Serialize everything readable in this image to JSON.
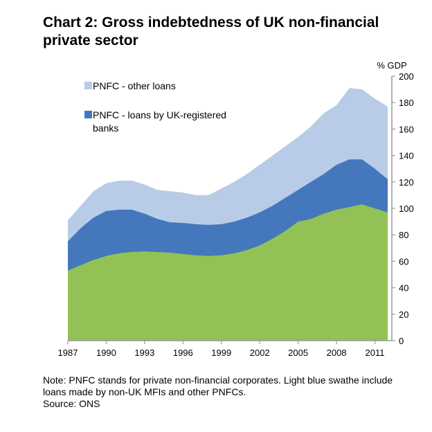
{
  "chart_data": {
    "type": "area",
    "stacked": true,
    "title": "Chart 2: Gross indebtedness of UK non-financial private sector",
    "y_axis": {
      "label": "% GDP",
      "position": "right",
      "range": [
        0,
        200
      ],
      "ticks": [
        0,
        20,
        40,
        60,
        80,
        100,
        120,
        140,
        160,
        180,
        200
      ]
    },
    "x_axis": {
      "range": [
        1987,
        2012
      ],
      "ticks": [
        "1987",
        "1990",
        "1993",
        "1996",
        "1999",
        "2002",
        "2005",
        "2008",
        "2011"
      ]
    },
    "x": [
      1987,
      1988,
      1989,
      1990,
      1991,
      1992,
      1993,
      1994,
      1995,
      1996,
      1997,
      1998,
      1999,
      2000,
      2001,
      2002,
      2003,
      2004,
      2005,
      2006,
      2007,
      2008,
      2009,
      2010,
      2011,
      2012
    ],
    "series": [
      {
        "name": "",
        "color": "#92c255",
        "values": [
          53,
          57,
          61,
          64,
          66,
          67,
          67.5,
          67,
          66.5,
          65.5,
          64.5,
          64,
          64.5,
          66,
          68.5,
          72,
          77,
          83,
          90,
          92,
          96,
          99,
          101,
          103,
          100,
          97
        ]
      },
      {
        "name": "PNFC - loans by UK-registered banks",
        "color": "#4577bd",
        "values": [
          75,
          85,
          93,
          98,
          99,
          99,
          96,
          92,
          89.5,
          89,
          88,
          87.5,
          88,
          90,
          93,
          97,
          102,
          108,
          114,
          120,
          126,
          133,
          137,
          137,
          130,
          122
        ]
      },
      {
        "name": "PNFC - other loans",
        "color": "#b8cce7",
        "values": [
          91,
          102,
          113,
          119,
          121,
          121,
          118,
          114,
          113,
          112,
          110,
          110,
          115,
          120,
          126,
          133,
          140,
          147,
          154,
          162,
          172,
          178,
          191,
          190,
          183,
          177
        ]
      }
    ],
    "legend_position": "top-left",
    "grid": false
  },
  "note": {
    "text": "Note: PNFC stands for private non-financial corporates.   Light blue swathe include loans made by non-UK MFIs and other PNFCs.",
    "source": "Source: ONS"
  }
}
